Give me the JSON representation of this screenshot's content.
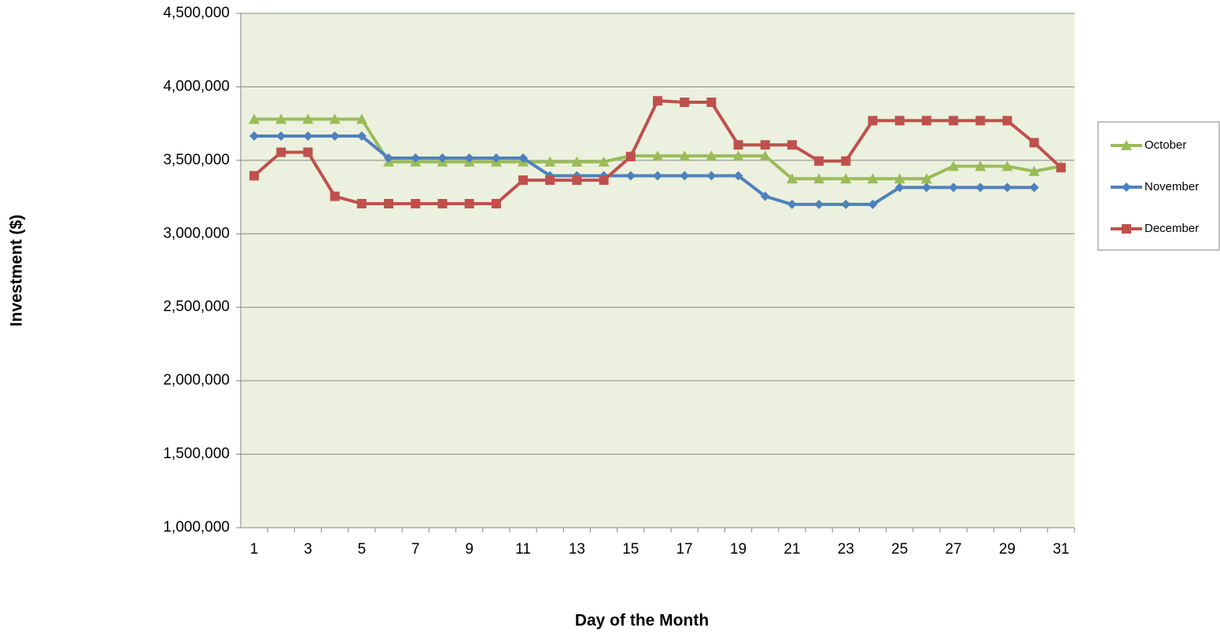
{
  "chart_data": {
    "type": "line",
    "x_label": "Day of the Month",
    "y_label": "Investment ($)",
    "categories": [
      "1",
      null,
      "3",
      null,
      "5",
      null,
      "7",
      null,
      "9",
      null,
      "11",
      null,
      "13",
      null,
      "15",
      null,
      "17",
      null,
      "19",
      null,
      "21",
      null,
      "23",
      null,
      "25",
      null,
      "27",
      null,
      "29",
      null,
      "31"
    ],
    "series": [
      {
        "name": "October",
        "color": "#9bbb59",
        "marker": "triangle",
        "values": [
          3780000,
          3780000,
          3780000,
          3780000,
          3780000,
          3490000,
          3490000,
          3490000,
          3490000,
          3490000,
          3490000,
          3490000,
          3490000,
          3490000,
          3530000,
          3530000,
          3530000,
          3530000,
          3530000,
          3530000,
          3375000,
          3375000,
          3375000,
          3375000,
          3375000,
          3375000,
          3460000,
          3460000,
          3460000,
          3425000,
          3460000
        ]
      },
      {
        "name": "November",
        "color": "#4f81bd",
        "marker": "diamond",
        "values": [
          3665000,
          3665000,
          3665000,
          3665000,
          3665000,
          3515000,
          3515000,
          3515000,
          3515000,
          3515000,
          3515000,
          3395000,
          3395000,
          3395000,
          3395000,
          3395000,
          3395000,
          3395000,
          3395000,
          3255000,
          3200000,
          3200000,
          3200000,
          3200000,
          3315000,
          3315000,
          3315000,
          3315000,
          3315000,
          3315000,
          null
        ]
      },
      {
        "name": "December",
        "color": "#c0504d",
        "marker": "square",
        "values": [
          3395000,
          3555000,
          3555000,
          3255000,
          3205000,
          3205000,
          3205000,
          3205000,
          3205000,
          3205000,
          3365000,
          3365000,
          3365000,
          3365000,
          3525000,
          3905000,
          3895000,
          3895000,
          3605000,
          3605000,
          3605000,
          3495000,
          3495000,
          3770000,
          3770000,
          3770000,
          3770000,
          3770000,
          3770000,
          3620000,
          3450000
        ]
      }
    ],
    "ylim": [
      1000000,
      4500000
    ],
    "yticks": [
      {
        "value": 1000000,
        "label": "1,000,000"
      },
      {
        "value": 1500000,
        "label": "1,500,000"
      },
      {
        "value": 2000000,
        "label": "2,000,000"
      },
      {
        "value": 2500000,
        "label": "2,500,000"
      },
      {
        "value": 3000000,
        "label": "3,000,000"
      },
      {
        "value": 3500000,
        "label": "3,500,000"
      },
      {
        "value": 4000000,
        "label": "4,000,000"
      },
      {
        "value": 4500000,
        "label": "4,500,000"
      }
    ],
    "grid": true,
    "legend_position": "right",
    "plot_background": "#ebf1de"
  }
}
